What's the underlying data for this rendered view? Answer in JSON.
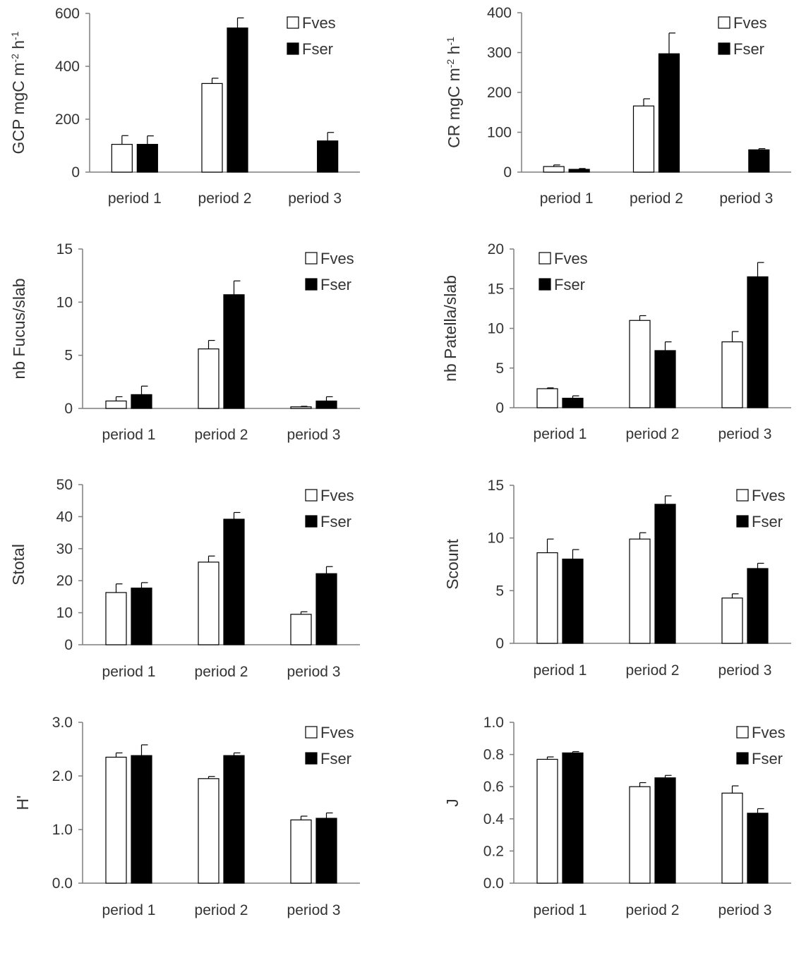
{
  "legend": {
    "fves": "Fves",
    "fser": "Fser"
  },
  "colors": {
    "fves": "#ffffff",
    "fser": "#000000",
    "axis": "#7f7f7f",
    "text": "#333333"
  },
  "chart_data": [
    {
      "type": "bar",
      "categories": [
        "period 1",
        "period 2",
        "period 3"
      ],
      "ylabel_parts": [
        [
          "GCP mgC m",
          ""
        ],
        [
          "-2",
          "sup"
        ],
        [
          " h",
          ""
        ],
        [
          "-1",
          "sup"
        ]
      ],
      "ylim": [
        0,
        600
      ],
      "yticks": [
        "0",
        "200",
        "400",
        "600"
      ],
      "series": [
        {
          "name": "Fves",
          "values": [
            105,
            335,
            null
          ],
          "errors": [
            33,
            20,
            null
          ]
        },
        {
          "name": "Fser",
          "values": [
            105,
            545,
            118
          ],
          "errors": [
            32,
            38,
            32
          ]
        }
      ],
      "legend_position": "top-right",
      "grid": false
    },
    {
      "type": "bar",
      "categories": [
        "period 1",
        "period 2",
        "period 3"
      ],
      "ylabel_parts": [
        [
          "CR mgC m",
          ""
        ],
        [
          "-2",
          "sup"
        ],
        [
          " h",
          ""
        ],
        [
          "-1",
          "sup"
        ]
      ],
      "ylim": [
        0,
        400
      ],
      "yticks": [
        "0",
        "100",
        "200",
        "300",
        "400"
      ],
      "series": [
        {
          "name": "Fves",
          "values": [
            14,
            166,
            null
          ],
          "errors": [
            4,
            18,
            null
          ]
        },
        {
          "name": "Fser",
          "values": [
            7,
            297,
            56
          ],
          "errors": [
            2,
            52,
            3
          ]
        }
      ],
      "legend_position": "top-right",
      "grid": false
    },
    {
      "type": "bar",
      "categories": [
        "period 1",
        "period 2",
        "period 3"
      ],
      "ylabel_parts": [
        [
          "nb Fucus/slab",
          ""
        ]
      ],
      "ylim": [
        0,
        15
      ],
      "yticks": [
        "0",
        "5",
        "10",
        "15"
      ],
      "series": [
        {
          "name": "Fves",
          "values": [
            0.7,
            5.6,
            0.15
          ],
          "errors": [
            0.4,
            0.8,
            0.05
          ]
        },
        {
          "name": "Fser",
          "values": [
            1.3,
            10.7,
            0.7
          ],
          "errors": [
            0.8,
            1.3,
            0.4
          ]
        }
      ],
      "legend_position": "top-right",
      "grid": false
    },
    {
      "type": "bar",
      "categories": [
        "period 1",
        "period 2",
        "period 3"
      ],
      "ylabel_parts": [
        [
          "nb Patella/slab",
          ""
        ]
      ],
      "ylim": [
        0,
        20
      ],
      "yticks": [
        "0",
        "5",
        "10",
        "15",
        "20"
      ],
      "series": [
        {
          "name": "Fves",
          "values": [
            2.4,
            11.0,
            8.3
          ],
          "errors": [
            0.1,
            0.6,
            1.3
          ]
        },
        {
          "name": "Fser",
          "values": [
            1.2,
            7.2,
            16.5
          ],
          "errors": [
            0.3,
            1.1,
            1.8
          ]
        }
      ],
      "legend_position": "top-left",
      "grid": false
    },
    {
      "type": "bar",
      "categories": [
        "period 1",
        "period 2",
        "period 3"
      ],
      "ylabel_parts": [
        [
          "Stotal",
          ""
        ]
      ],
      "ylim": [
        0,
        50
      ],
      "yticks": [
        "0",
        "10",
        "20",
        "30",
        "40",
        "50"
      ],
      "series": [
        {
          "name": "Fves",
          "values": [
            16.3,
            25.8,
            9.5
          ],
          "errors": [
            2.7,
            1.9,
            0.8
          ]
        },
        {
          "name": "Fser",
          "values": [
            17.7,
            39.2,
            22.2
          ],
          "errors": [
            1.7,
            2.1,
            2.2
          ]
        }
      ],
      "legend_position": "top-right",
      "grid": false
    },
    {
      "type": "bar",
      "categories": [
        "period 1",
        "period 2",
        "period 3"
      ],
      "ylabel_parts": [
        [
          "Scount",
          ""
        ]
      ],
      "ylim": [
        0,
        15
      ],
      "yticks": [
        "0",
        "5",
        "10",
        "15"
      ],
      "series": [
        {
          "name": "Fves",
          "values": [
            8.6,
            9.9,
            4.3
          ],
          "errors": [
            1.3,
            0.6,
            0.4
          ]
        },
        {
          "name": "Fser",
          "values": [
            8.0,
            13.2,
            7.1
          ],
          "errors": [
            0.9,
            0.8,
            0.5
          ]
        }
      ],
      "legend_position": "top-right",
      "grid": false
    },
    {
      "type": "bar",
      "categories": [
        "period 1",
        "period 2",
        "period 3"
      ],
      "ylabel_parts": [
        [
          "H'",
          ""
        ]
      ],
      "ylim": [
        0,
        3
      ],
      "yticks": [
        "0.0",
        "1.0",
        "2.0",
        "3.0"
      ],
      "series": [
        {
          "name": "Fves",
          "values": [
            2.35,
            1.95,
            1.18
          ],
          "errors": [
            0.08,
            0.04,
            0.07
          ]
        },
        {
          "name": "Fser",
          "values": [
            2.38,
            2.38,
            1.21
          ],
          "errors": [
            0.2,
            0.05,
            0.1
          ]
        }
      ],
      "legend_position": "top-right",
      "grid": false
    },
    {
      "type": "bar",
      "categories": [
        "period 1",
        "period 2",
        "period 3"
      ],
      "ylabel_parts": [
        [
          "J",
          ""
        ]
      ],
      "ylim": [
        0,
        1
      ],
      "yticks": [
        "0.0",
        "0.2",
        "0.4",
        "0.6",
        "0.8",
        "1.0"
      ],
      "series": [
        {
          "name": "Fves",
          "values": [
            0.77,
            0.6,
            0.56
          ],
          "errors": [
            0.015,
            0.025,
            0.045
          ]
        },
        {
          "name": "Fser",
          "values": [
            0.81,
            0.655,
            0.435
          ],
          "errors": [
            0.008,
            0.015,
            0.028
          ]
        }
      ],
      "legend_position": "top-right",
      "grid": false
    }
  ]
}
